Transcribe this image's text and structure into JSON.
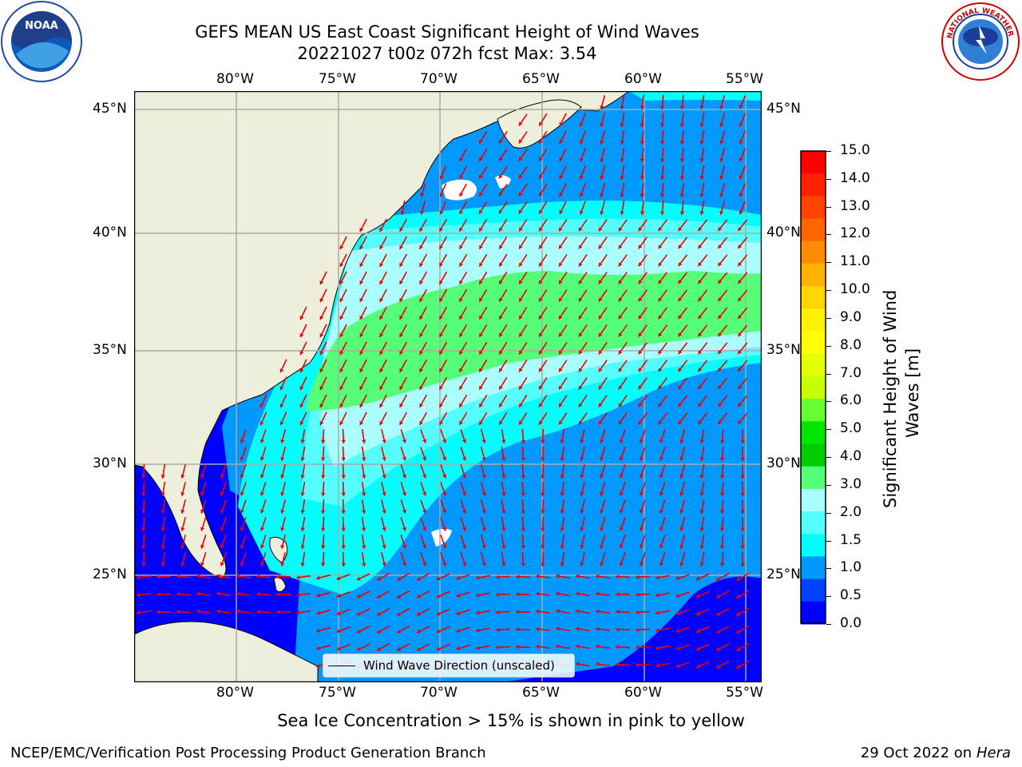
{
  "title": {
    "line1": "GEFS MEAN US East Coast Significant Height of Wind Waves",
    "line2": "20221027 t00z 072h fcst   Max: 3.54"
  },
  "axes": {
    "lon_labels": [
      "80°W",
      "75°W",
      "70°W",
      "65°W",
      "60°W",
      "55°W"
    ],
    "lat_labels": [
      "45°N",
      "40°N",
      "35°N",
      "30°N",
      "25°N"
    ]
  },
  "legend": {
    "label": "Wind Wave Direction (unscaled)"
  },
  "colorbar": {
    "label_line1": "Significant Height of Wind",
    "label_line2": "Waves [m]",
    "ticks": [
      "15.0",
      "14.0",
      "13.0",
      "12.0",
      "11.0",
      "10.0",
      "9.0",
      "8.0",
      "7.0",
      "6.0",
      "5.0",
      "4.0",
      "3.0",
      "2.0",
      "1.5",
      "1.0",
      "0.5",
      "0.0"
    ],
    "colors": [
      "#ff0000",
      "#ff2200",
      "#ff4400",
      "#ff6600",
      "#ff8c00",
      "#ffb300",
      "#ffd600",
      "#fff200",
      "#ffff00",
      "#e6ff00",
      "#c8ff00",
      "#66ff33",
      "#00e600",
      "#00cc00",
      "#55ff77",
      "#aaffff",
      "#55ffff",
      "#00ffff",
      "#0099ff",
      "#0044ff",
      "#0000ff"
    ]
  },
  "logos": {
    "noaa_text": "NOAA",
    "nws_text": "NATIONAL WEATHER SERVICE"
  },
  "note": "Sea Ice Concentration > 15% is shown in pink to yellow",
  "footer": {
    "left": "NCEP/EMC/Verification Post Processing Product Generation Branch",
    "date": "29 Oct 2022 on",
    "host": "Hera"
  },
  "chart_data": {
    "type": "heatmap",
    "title": "GEFS MEAN US East Coast Significant Height of Wind Waves",
    "subtitle": "20221027 t00z 072h fcst   Max: 3.54",
    "xlim": [
      -85,
      -54.5
    ],
    "ylim": [
      20.5,
      46
    ],
    "max": 3.54,
    "units": "m",
    "zlevels": [
      0.0,
      0.5,
      1.0,
      1.5,
      2.0,
      3.0,
      4.0,
      5.0,
      6.0,
      7.0,
      8.0,
      9.0,
      10.0,
      11.0,
      12.0,
      13.0,
      14.0,
      15.0
    ],
    "wind_direction": "unscaled"
  }
}
